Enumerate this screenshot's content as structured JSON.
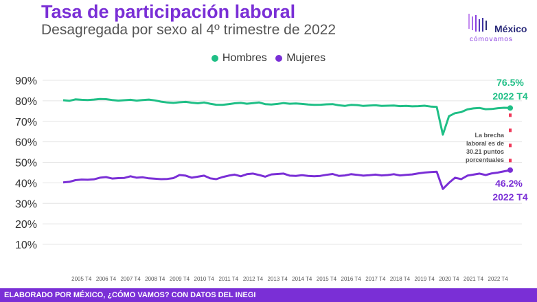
{
  "header": {
    "title": "Tasa de participación laboral",
    "subtitle": "Desagregada por sexo al 4º trimestre de 2022"
  },
  "logo": {
    "main": "México",
    "sub": "cómovamos"
  },
  "footer": {
    "text": "ELABORADO POR MÉXICO, ¿CÓMO VAMOS? CON DATOS DEL INEGI"
  },
  "colors": {
    "hombres": "#1fbf86",
    "mujeres": "#7a2fd6",
    "gap": "#f0395a",
    "accent": "#7a2fd6"
  },
  "chart_data": {
    "type": "line",
    "title": "Tasa de participación laboral",
    "subtitle": "Desagregada por sexo al 4º trimestre de 2022",
    "y_ticks": [
      "90%",
      "80%",
      "70%",
      "60%",
      "50%",
      "40%",
      "30%",
      "20%",
      "10%"
    ],
    "ylim": [
      0,
      90
    ],
    "x_ticks": [
      "2005 T4",
      "2006 T4",
      "2007 T4",
      "2008 T4",
      "2009 T4",
      "2010 T4",
      "2011 T4",
      "2012 T4",
      "2013 T4",
      "2014 T4",
      "2015 T4",
      "2016 T4",
      "2017 T4",
      "2018 T4",
      "2019 T4",
      "2020 T4",
      "2021 T4",
      "2022 T4"
    ],
    "x_start": "2005 T1",
    "legend_position": "top-center",
    "grid": true,
    "series": [
      {
        "name": "Hombres",
        "color": "#1fbf86",
        "values": [
          80.3,
          80.0,
          80.7,
          80.5,
          80.4,
          80.6,
          80.9,
          80.8,
          80.4,
          80.1,
          80.3,
          80.5,
          80.1,
          80.4,
          80.6,
          80.2,
          79.6,
          79.2,
          79.0,
          79.3,
          79.5,
          79.1,
          78.8,
          79.2,
          78.6,
          78.1,
          78.0,
          78.4,
          78.8,
          79.0,
          78.6,
          78.9,
          79.2,
          78.4,
          78.2,
          78.5,
          78.9,
          78.6,
          78.7,
          78.5,
          78.2,
          78.0,
          78.1,
          78.3,
          78.4,
          77.8,
          77.5,
          78.0,
          77.9,
          77.5,
          77.7,
          77.8,
          77.5,
          77.6,
          77.7,
          77.4,
          77.5,
          77.3,
          77.4,
          77.6,
          77.2,
          77.0,
          63.5,
          72.5,
          74.0,
          74.5,
          75.8,
          76.3,
          76.5,
          75.9,
          76.0,
          76.4,
          76.6,
          76.5
        ]
      },
      {
        "name": "Mujeres",
        "color": "#7a2fd6",
        "values": [
          40.2,
          40.5,
          41.3,
          41.6,
          41.5,
          41.7,
          42.5,
          42.8,
          42.1,
          42.3,
          42.4,
          43.2,
          42.5,
          42.7,
          42.2,
          42.0,
          41.8,
          41.9,
          42.3,
          43.8,
          43.5,
          42.5,
          43.0,
          43.5,
          42.2,
          41.8,
          42.8,
          43.5,
          44.0,
          43.2,
          44.2,
          44.5,
          43.8,
          43.0,
          44.1,
          44.3,
          44.5,
          43.5,
          43.4,
          43.7,
          43.4,
          43.2,
          43.4,
          43.9,
          44.3,
          43.4,
          43.6,
          44.2,
          43.9,
          43.5,
          43.7,
          44.0,
          43.6,
          43.8,
          44.2,
          43.6,
          43.9,
          44.1,
          44.6,
          45.0,
          45.2,
          45.4,
          37.0,
          40.0,
          42.5,
          41.8,
          43.5,
          44.0,
          44.5,
          43.8,
          44.6,
          45.0,
          45.6,
          46.2
        ]
      }
    ],
    "labels": {
      "hombres_value": "76.5%",
      "hombres_period": "2022 T4",
      "mujeres_value": "46.2%",
      "mujeres_period": "2022 T4",
      "gap_note": [
        "La brecha",
        "laboral es de",
        "30.21 puntos",
        "porcentuales"
      ]
    }
  }
}
